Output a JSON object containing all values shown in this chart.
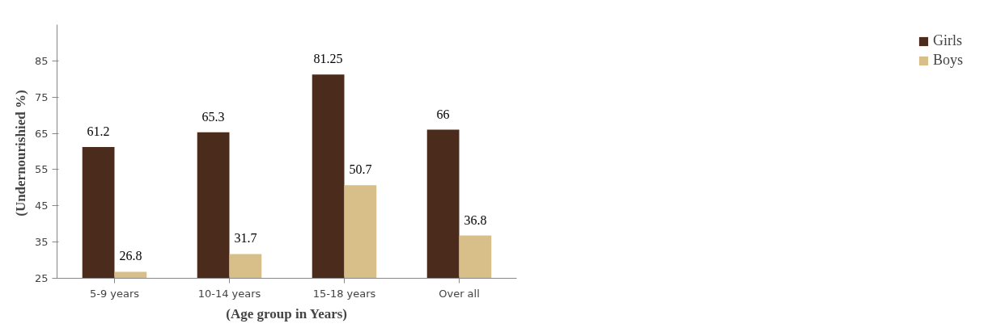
{
  "chart_data": {
    "type": "bar",
    "xlabel": "(Age group in Years)",
    "ylabel": "(Undernourishied  %)",
    "categories": [
      "5-9 years",
      "10-14 years",
      "15-18 years",
      "Over all"
    ],
    "series": [
      {
        "name": "Girls",
        "color": "#4b2c1c",
        "values": [
          61.2,
          65.3,
          81.25,
          66
        ]
      },
      {
        "name": "Boys",
        "color": "#d8bf8a",
        "values": [
          26.8,
          31.7,
          50.7,
          36.8
        ]
      }
    ],
    "ylim": [
      25,
      95
    ],
    "yticks": [
      25,
      35,
      45,
      55,
      65,
      75,
      85
    ],
    "grid": false,
    "legend": "right",
    "data_labels": true
  }
}
